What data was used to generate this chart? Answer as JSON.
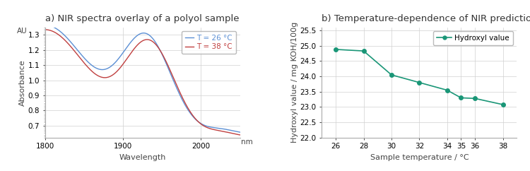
{
  "title_a": "a) NIR spectra overlay of a polyol sample",
  "title_b": "b) Temperature-dependence of NIR prediction",
  "ax_a": {
    "xlabel": "Wavelength",
    "ylabel": "Absorbance",
    "au_label": "AU",
    "nm_label": "nm",
    "xlim": [
      1800,
      2050
    ],
    "ylim": [
      0.62,
      1.35
    ],
    "yticks": [
      0.7,
      0.8,
      0.9,
      1.0,
      1.1,
      1.2,
      1.3
    ],
    "xticks": [
      1800,
      1900,
      2000
    ],
    "color_26": "#5b8fd4",
    "color_38": "#c04040",
    "legend_labels": [
      "T = 26 °C",
      "T = 38 °C"
    ]
  },
  "ax_b": {
    "xlabel": "Sample temperature / °C",
    "ylabel": "Hydroxyl value / mg KOH/100g",
    "xlim": [
      25,
      39
    ],
    "ylim": [
      22,
      25.6
    ],
    "yticks": [
      22,
      22.5,
      23,
      23.5,
      24,
      24.5,
      25,
      25.5
    ],
    "xticks": [
      26,
      28,
      30,
      32,
      34,
      35,
      36,
      38
    ],
    "temp": [
      26,
      28,
      30,
      32,
      34,
      35,
      36,
      38
    ],
    "hydroxyl": [
      24.88,
      24.83,
      24.05,
      23.8,
      23.55,
      23.3,
      23.28,
      23.08
    ],
    "line_color": "#1a9677",
    "marker": "o",
    "legend_label": "Hydroxyl value"
  },
  "bg_color": "#ffffff",
  "grid_color": "#d0d0d0",
  "title_fontsize": 9.5,
  "label_fontsize": 8,
  "tick_fontsize": 7.5
}
